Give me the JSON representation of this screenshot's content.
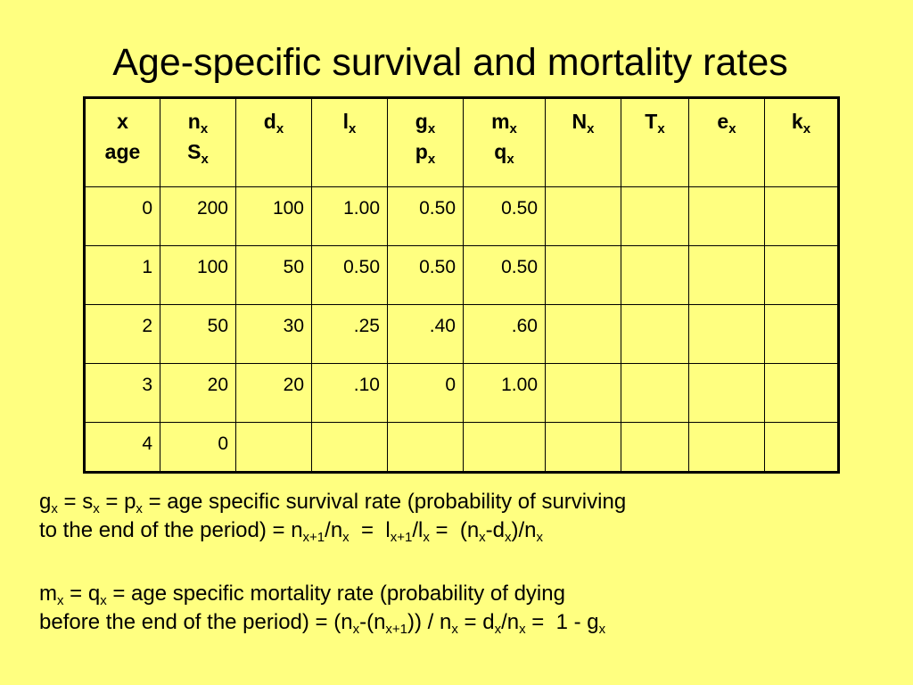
{
  "title": "Age-specific survival and mortality rates",
  "table": {
    "headers": [
      {
        "line1": "x",
        "line1_sub": "",
        "line2": "age",
        "line2_sub": ""
      },
      {
        "line1": "n",
        "line1_sub": "x",
        "line2": "S",
        "line2_sub": "x"
      },
      {
        "line1": "d",
        "line1_sub": "x",
        "line2": "",
        "line2_sub": ""
      },
      {
        "line1": "l",
        "line1_sub": "x",
        "line2": "",
        "line2_sub": ""
      },
      {
        "line1": "g",
        "line1_sub": "x",
        "line2": "p",
        "line2_sub": "x"
      },
      {
        "line1": "m",
        "line1_sub": "x",
        "line2": "q",
        "line2_sub": "x"
      },
      {
        "line1": "N",
        "line1_sub": "x",
        "line2": "",
        "line2_sub": ""
      },
      {
        "line1": "T",
        "line1_sub": "x",
        "line2": "",
        "line2_sub": ""
      },
      {
        "line1": "e",
        "line1_sub": "x",
        "line2": "",
        "line2_sub": ""
      },
      {
        "line1": "k",
        "line1_sub": "x",
        "line2": "",
        "line2_sub": ""
      }
    ],
    "rows": [
      [
        "0",
        "200",
        "100",
        "1.00",
        "0.50",
        "0.50",
        "",
        "",
        "",
        ""
      ],
      [
        "1",
        "100",
        "50",
        "0.50",
        "0.50",
        "0.50",
        "",
        "",
        "",
        ""
      ],
      [
        "2",
        "50",
        "30",
        ".25",
        ".40",
        ".60",
        "",
        "",
        "",
        ""
      ],
      [
        "3",
        "20",
        "20",
        ".10",
        "0",
        "1.00",
        "",
        "",
        "",
        ""
      ],
      [
        "4",
        "0",
        "",
        "",
        "",
        "",
        "",
        "",
        "",
        ""
      ]
    ]
  },
  "notes": {
    "g_note": {
      "line1": [
        "g",
        {
          "sub": "x"
        },
        " = s",
        {
          "sub": "x"
        },
        " = p",
        {
          "sub": "x"
        },
        " = age specific survival rate (probability of surviving"
      ],
      "line2": [
        "to the end of the period) = n",
        {
          "sub": "x+1"
        },
        "/n",
        {
          "sub": "x"
        },
        "  =  l",
        {
          "sub": "x+1"
        },
        "/l",
        {
          "sub": "x"
        },
        " =  (n",
        {
          "sub": "x"
        },
        "-d",
        {
          "sub": "x"
        },
        ")/n",
        {
          "sub": "x"
        }
      ]
    },
    "m_note": {
      "line1": [
        "m",
        {
          "sub": "x"
        },
        " = q",
        {
          "sub": "x"
        },
        " = age specific mortality rate (probability of dying"
      ],
      "line2": [
        "before the end of the period) = (n",
        {
          "sub": "x"
        },
        "-(n",
        {
          "sub": "x+1"
        },
        ")) / n",
        {
          "sub": "x"
        },
        " = d",
        {
          "sub": "x"
        },
        "/n",
        {
          "sub": "x"
        },
        " =  1 - g",
        {
          "sub": "x"
        }
      ]
    }
  },
  "colors": {
    "background": "#ffff80",
    "text": "#000000"
  }
}
